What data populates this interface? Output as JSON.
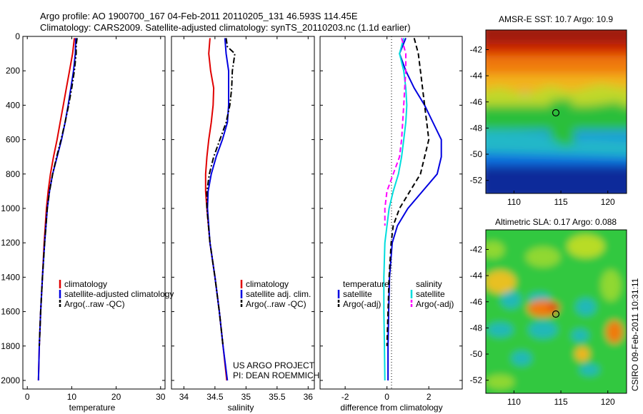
{
  "header": {
    "line1": "Argo profile: AO 1900700_167 04-Feb-2011 20110205_131 46.593S 114.45E",
    "line2": "Climatology: CARS2009. Satellite-adjusted climatology: synTS_20110203.nc (1.1d earlier)"
  },
  "side_label": "CSIRO 09-Feb-2011 10:31:11",
  "credits": {
    "line1": "US ARGO PROJECT",
    "line2": "PI: DEAN ROEMMICH"
  },
  "colors": {
    "climatology": "#e00000",
    "satellite": "#0000e0",
    "argo": "#000000",
    "satellite_salinity": "#00dddd",
    "argo_salinity_adj": "#ff00ff"
  },
  "chart_data": [
    {
      "type": "line",
      "xlabel": "temperature",
      "ylabel": "",
      "xlim": [
        -1,
        31
      ],
      "ylim": [
        2050,
        0
      ],
      "xticks": [
        "0",
        "10",
        "20",
        "30"
      ],
      "yticks": [
        "0",
        "200",
        "400",
        "600",
        "800",
        "1000",
        "1200",
        "1400",
        "1600",
        "1800",
        "2000"
      ],
      "legend": [
        "climatology",
        "satellite-adjusted climatology",
        "Argo(..raw -QC)"
      ],
      "series": [
        {
          "name": "climatology",
          "style": "solid",
          "color": "#e00000",
          "depth": [
            10,
            100,
            200,
            300,
            400,
            500,
            600,
            700,
            800,
            900,
            1000,
            1200,
            1400,
            1600,
            1800,
            2000
          ],
          "values": [
            10.6,
            10.2,
            9.5,
            8.8,
            8.1,
            7.4,
            6.7,
            5.9,
            5.2,
            4.7,
            4.3,
            3.8,
            3.4,
            3.0,
            2.7,
            2.5
          ]
        },
        {
          "name": "satellite-adjusted climatology",
          "style": "solid",
          "color": "#0000e0",
          "depth": [
            10,
            100,
            200,
            300,
            400,
            500,
            600,
            700,
            800,
            900,
            1000,
            1200,
            1400,
            1600,
            1800,
            2000
          ],
          "values": [
            10.9,
            10.8,
            10.4,
            9.8,
            9.2,
            8.5,
            7.7,
            6.7,
            5.7,
            5.0,
            4.5,
            3.9,
            3.4,
            3.0,
            2.7,
            2.5
          ]
        },
        {
          "name": "Argo(..raw -QC)",
          "style": "dashdot",
          "color": "#000000",
          "depth": [
            10,
            50,
            100,
            200,
            300,
            400,
            500,
            600,
            700,
            800,
            900,
            1000,
            1200,
            1400,
            1600,
            1800
          ],
          "values": [
            11.2,
            11.0,
            11.0,
            10.6,
            10.0,
            9.3,
            8.5,
            7.6,
            6.6,
            5.7,
            5.0,
            4.5,
            3.9,
            3.4,
            3.0,
            2.7
          ]
        }
      ]
    },
    {
      "type": "line",
      "xlabel": "salinity",
      "ylabel": "",
      "xlim": [
        33.8,
        36.1
      ],
      "ylim": [
        2050,
        0
      ],
      "xticks": [
        "34",
        "34.5",
        "35",
        "35.5",
        "36"
      ],
      "legend": [
        "climatology",
        "satellite adj. clim.",
        "Argo(..raw -QC)"
      ],
      "series": [
        {
          "name": "climatology",
          "style": "solid",
          "color": "#e00000",
          "depth": [
            10,
            100,
            200,
            300,
            400,
            500,
            600,
            700,
            800,
            900,
            1000,
            1200,
            1400,
            1600,
            1800,
            2000
          ],
          "values": [
            34.42,
            34.4,
            34.43,
            34.48,
            34.47,
            34.44,
            34.4,
            34.37,
            34.35,
            34.35,
            34.37,
            34.42,
            34.5,
            34.57,
            34.63,
            34.69
          ]
        },
        {
          "name": "satellite adj. clim.",
          "style": "solid",
          "color": "#0000e0",
          "depth": [
            10,
            100,
            200,
            300,
            400,
            500,
            600,
            700,
            800,
            900,
            1000,
            1200,
            1400,
            1600,
            1800,
            2000
          ],
          "values": [
            34.66,
            34.68,
            34.72,
            34.72,
            34.72,
            34.7,
            34.62,
            34.52,
            34.44,
            34.39,
            34.38,
            34.42,
            34.5,
            34.57,
            34.63,
            34.7
          ]
        },
        {
          "name": "Argo(..raw -QC)",
          "style": "dashdot",
          "color": "#000000",
          "depth": [
            10,
            60,
            100,
            150,
            200,
            300,
            400,
            500,
            600,
            700,
            800,
            900,
            1000,
            1200,
            1400,
            1600,
            1800
          ],
          "values": [
            34.68,
            34.7,
            34.82,
            34.8,
            34.78,
            34.77,
            34.74,
            34.68,
            34.58,
            34.48,
            34.41,
            34.37,
            34.37,
            34.42,
            34.5,
            34.57,
            34.63
          ]
        }
      ]
    },
    {
      "type": "line",
      "xlabel": "difference from climatology",
      "ylabel": "",
      "xlim": [
        -3.2,
        3.6
      ],
      "ylim": [
        2050,
        0
      ],
      "xticks": [
        "-2",
        "0",
        "2"
      ],
      "legend_left": {
        "title": "temperature",
        "items": [
          "satellite",
          "Argo(-adj)"
        ]
      },
      "legend_right": {
        "title": "salinity",
        "items": [
          "satellite",
          "Argo(-adj)"
        ]
      },
      "series": [
        {
          "name": "temperature satellite",
          "style": "solid",
          "color": "#0000e0",
          "depth": [
            10,
            100,
            200,
            300,
            400,
            500,
            600,
            700,
            800,
            900,
            1000,
            1100,
            1200,
            1400,
            1600,
            1800,
            2000
          ],
          "values": [
            0.9,
            0.6,
            0.9,
            1.3,
            1.8,
            2.2,
            2.6,
            2.6,
            2.4,
            1.7,
            1.0,
            0.5,
            0.25,
            0.12,
            0.08,
            0.05,
            0.05
          ]
        },
        {
          "name": "temperature Argo(-adj)",
          "style": "dashed",
          "color": "#000000",
          "depth": [
            10,
            100,
            200,
            300,
            400,
            500,
            600,
            700,
            800,
            900,
            1000,
            1100,
            1200,
            1400,
            1600,
            1800
          ],
          "values": [
            1.3,
            1.5,
            1.6,
            1.7,
            1.8,
            1.9,
            2.0,
            1.8,
            1.6,
            1.1,
            0.6,
            0.3,
            0.2,
            0.1,
            0.05,
            0.0
          ]
        },
        {
          "name": "salinity satellite",
          "style": "solid",
          "color": "#00dddd",
          "depth": [
            10,
            100,
            200,
            300,
            400,
            500,
            600,
            700,
            800,
            900,
            1000,
            1200,
            1400,
            1600,
            1800,
            2000
          ],
          "values": [
            0.8,
            0.6,
            0.8,
            0.9,
            0.95,
            0.9,
            0.8,
            0.7,
            0.55,
            0.3,
            0.1,
            -0.1,
            -0.15,
            -0.15,
            -0.12,
            -0.1
          ]
        },
        {
          "name": "salinity Argo(-adj)",
          "style": "dashed",
          "color": "#ff00ff",
          "depth": [
            10,
            100,
            200,
            300,
            400,
            500,
            600,
            700,
            800,
            900,
            1000,
            1100
          ],
          "values": [
            0.7,
            0.9,
            0.9,
            0.85,
            0.8,
            0.75,
            0.7,
            0.6,
            0.3,
            0.0,
            -0.1,
            -0.1
          ]
        }
      ]
    },
    {
      "type": "heatmap",
      "title": "AMSR-E SST: 10.7 Argo: 10.9",
      "xlim": [
        107,
        122
      ],
      "ylim": [
        -53,
        -40.5
      ],
      "xticks": [
        "110",
        "115",
        "120"
      ],
      "yticks": [
        "-42",
        "-44",
        "-46",
        "-48",
        "-50",
        "-52"
      ],
      "marker": {
        "lon": 114.45,
        "lat": -46.593
      }
    },
    {
      "type": "heatmap",
      "title": "Altimetric SLA: 0.17 Argo: 0.088",
      "xlim": [
        107,
        122
      ],
      "ylim": [
        -53,
        -40.5
      ],
      "xticks": [
        "110",
        "115",
        "120"
      ],
      "yticks": [
        "-42",
        "-44",
        "-46",
        "-48",
        "-50",
        "-52"
      ],
      "marker": {
        "lon": 114.45,
        "lat": -46.593
      }
    }
  ]
}
